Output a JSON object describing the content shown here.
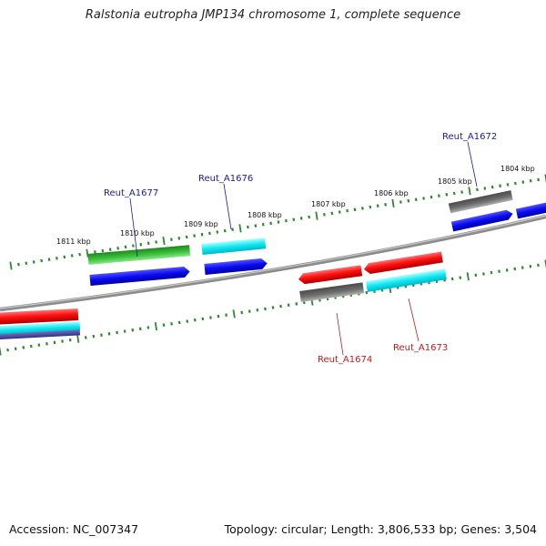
{
  "title": "Ralstonia eutropha JMP134 chromosome 1, complete sequence",
  "footer": {
    "accession": "Accession: NC_007347",
    "summary": "Topology: circular; Length: 3,806,533 bp; Genes: 3,504"
  },
  "kbp_labels": [
    "1811 kbp",
    "1810 kbp",
    "1809 kbp",
    "1808 kbp",
    "1807 kbp",
    "1806 kbp",
    "1805 kbp",
    "1804 kbp"
  ],
  "gene_labels": {
    "a1677": "Reut_A1677",
    "a1676": "Reut_A1676",
    "a1672": "Reut_A1672",
    "a1674": "Reut_A1674",
    "a1673": "Reut_A1673"
  },
  "colors": {
    "forward_label": "#1a1aa8",
    "reverse_label": "#c81818",
    "backbone": "#8c8c8c",
    "tick": "#2d8a2d",
    "red": "#ff1010",
    "blue": "#0a0af0",
    "cyan": "#10e8f0",
    "green": "#3cc23c",
    "gray": "#6e6e6e",
    "purple": "#5050a8"
  }
}
